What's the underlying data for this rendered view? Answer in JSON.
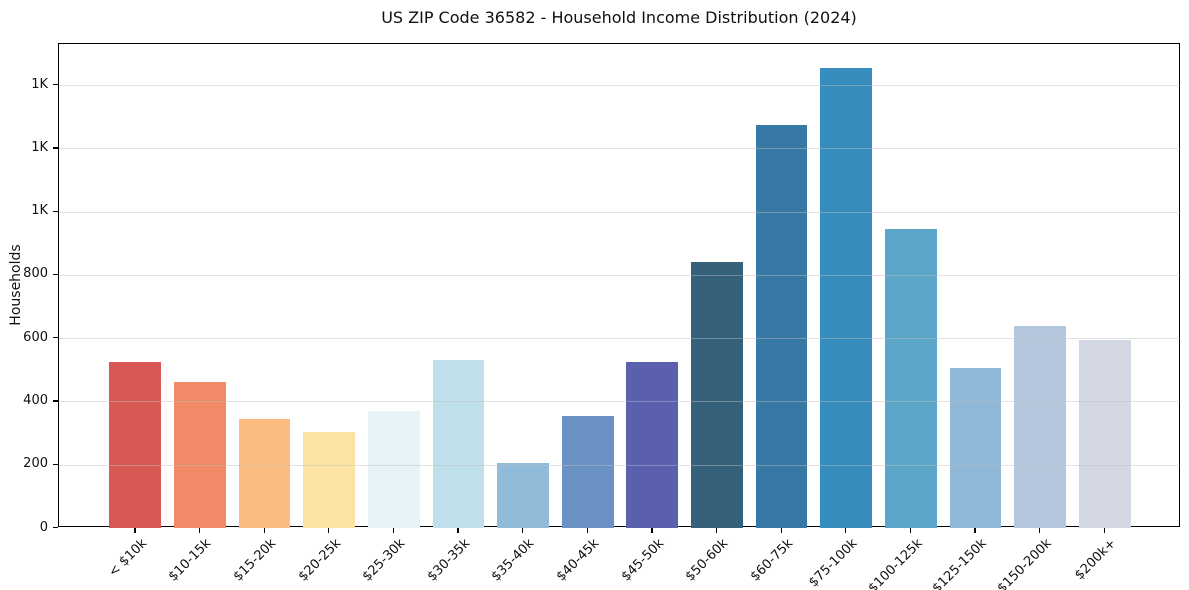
{
  "chart_data": {
    "type": "bar",
    "title": "US ZIP Code 36582 - Household Income Distribution (2024)",
    "xlabel": "",
    "ylabel": "Households",
    "categories": [
      "< $10k",
      "$10-15k",
      "$15-20k",
      "$20-25k",
      "$25-30k",
      "$30-35k",
      "$35-40k",
      "$40-45k",
      "$45-50k",
      "$50-60k",
      "$60-75k",
      "$75-100k",
      "$100-125k",
      "$125-150k",
      "$150-200k",
      "$200k+"
    ],
    "values": [
      525,
      460,
      345,
      305,
      370,
      530,
      205,
      355,
      525,
      840,
      1275,
      1455,
      945,
      505,
      640,
      595
    ],
    "bar_colors": [
      "#d85854",
      "#f28a67",
      "#fabc7f",
      "#fde3a2",
      "#e6f2f5",
      "#bfdfea",
      "#90bcd9",
      "#6a92c5",
      "#5a5fae",
      "#36617a",
      "#3579a4",
      "#388dbf",
      "#5ba6c9",
      "#90b8d8",
      "#b4c7dd",
      "#d4d8e4"
    ],
    "ylim": [
      0,
      1530
    ],
    "ytick_values": [
      0,
      200,
      400,
      600,
      800,
      1000,
      1200,
      1400
    ],
    "ytick_labels": [
      "0",
      "200",
      "400",
      "600",
      "800",
      "1K",
      "1K",
      "1K"
    ],
    "grid": "horizontal-only",
    "grid_color": "rgba(190,190,190,0.45)",
    "legend": "none",
    "axis_color": "#000000"
  }
}
